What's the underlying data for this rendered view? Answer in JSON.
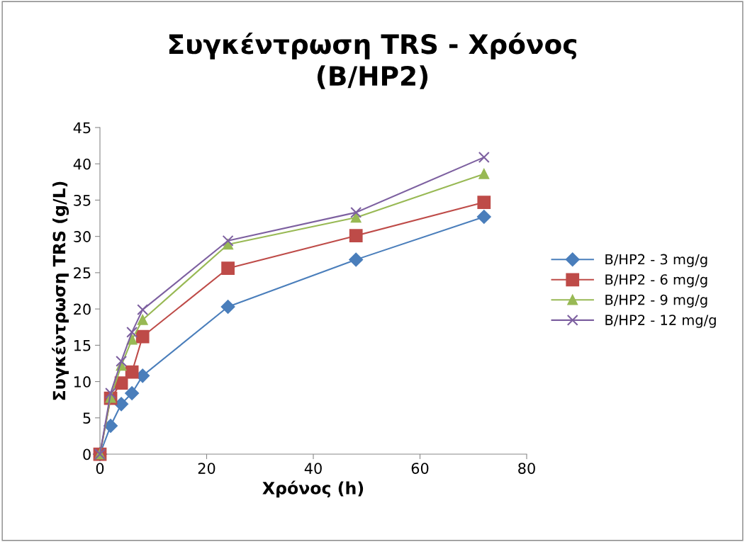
{
  "chart_data": {
    "type": "line",
    "title": "Συγκέντρωση TRS - Χρόνος\n(B/HP2)",
    "xlabel": "Χρόνος (h)",
    "ylabel": "Συγκέντρωση TRS (g/L)",
    "x": [
      0,
      2,
      4,
      6,
      8,
      24,
      48,
      72
    ],
    "series": [
      {
        "name": "B/HP2 - 3 mg/g",
        "color": "#4a7ebb",
        "marker": "diamond",
        "values": [
          0,
          3.9,
          6.9,
          8.4,
          10.8,
          20.3,
          26.8,
          32.7
        ]
      },
      {
        "name": "B/HP2 - 6 mg/g",
        "color": "#be4b48",
        "marker": "square",
        "values": [
          0,
          7.7,
          9.8,
          11.3,
          16.2,
          25.6,
          30.1,
          34.7
        ]
      },
      {
        "name": "B/HP2 - 9 mg/g",
        "color": "#98b954",
        "marker": "triangle",
        "values": [
          0,
          7.8,
          12.2,
          15.8,
          18.5,
          28.9,
          32.6,
          38.6
        ]
      },
      {
        "name": "B/HP2 - 12 mg/g",
        "color": "#7d60a0",
        "marker": "cross",
        "values": [
          0,
          8.4,
          12.8,
          16.8,
          19.9,
          29.4,
          33.3,
          40.9
        ]
      }
    ],
    "xlim": [
      0,
      80
    ],
    "xticks": [
      0,
      20,
      40,
      60,
      80
    ],
    "ylim": [
      0,
      45
    ],
    "yticks": [
      0,
      5,
      10,
      15,
      20,
      25,
      30,
      35,
      40,
      45
    ],
    "grid": false,
    "legend": "right",
    "line_style": "solid"
  }
}
